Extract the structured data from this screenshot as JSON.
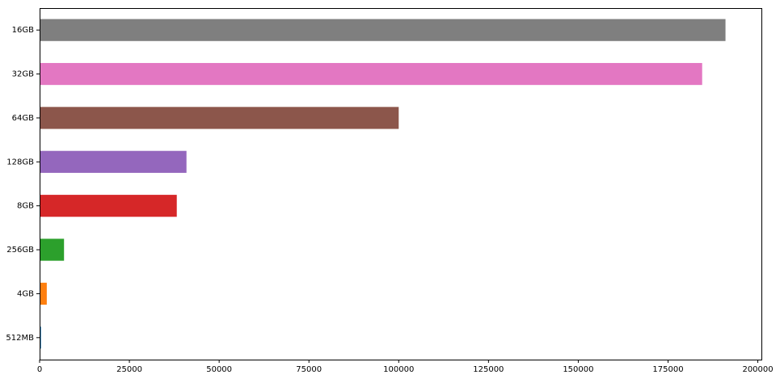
{
  "chart_data": {
    "type": "bar",
    "orientation": "horizontal",
    "title": "",
    "xlabel": "",
    "ylabel": "",
    "categories": [
      "512MB",
      "4GB",
      "256GB",
      "8GB",
      "128GB",
      "64GB",
      "32GB",
      "16GB"
    ],
    "values": [
      400,
      2000,
      6800,
      38200,
      40900,
      100000,
      184500,
      191000
    ],
    "colors": [
      "#1f77b4",
      "#ff7f0e",
      "#2ca02c",
      "#d62728",
      "#9467bd",
      "#8c564b",
      "#e377c2",
      "#7f7f7f"
    ],
    "xlim": [
      0,
      201000
    ],
    "xticks": [
      0,
      25000,
      50000,
      75000,
      100000,
      125000,
      150000,
      175000,
      200000
    ],
    "grid": false,
    "legend": false
  }
}
